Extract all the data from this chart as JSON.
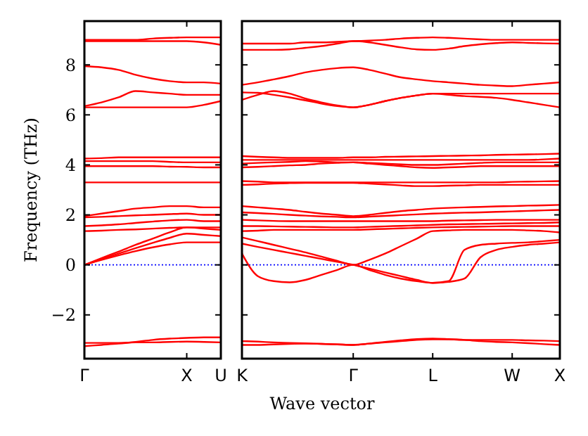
{
  "chart_data": [
    {
      "type": "line",
      "ylabel": "Frequency (THz)",
      "categories": [
        "Γ",
        null,
        null,
        null,
        null,
        null,
        "X",
        null,
        "U"
      ],
      "ylim": [
        -3.75,
        9.75
      ],
      "yticks": [
        {
          "value": -2,
          "label": "−2"
        },
        0,
        2,
        4,
        6,
        8
      ],
      "ref_lines": [
        {
          "axis": "y",
          "value": 0,
          "color": "#0000ff",
          "line_style": "dotted"
        }
      ],
      "series": [
        {
          "color": "#ff0000",
          "values": [
            9.0,
            9.0,
            9.0,
            9.0,
            9.05,
            9.08,
            9.1,
            9.1,
            9.1
          ]
        },
        {
          "color": "#ff0000",
          "values": [
            8.95,
            8.95,
            8.95,
            8.95,
            8.95,
            8.95,
            8.95,
            8.9,
            8.8
          ]
        },
        {
          "color": "#ff0000",
          "values": [
            7.95,
            7.9,
            7.8,
            7.6,
            7.45,
            7.35,
            7.3,
            7.3,
            7.25
          ]
        },
        {
          "color": "#ff0000",
          "values": [
            6.35,
            6.5,
            6.7,
            6.95,
            6.9,
            6.85,
            6.8,
            6.8,
            6.8
          ]
        },
        {
          "color": "#ff0000",
          "values": [
            6.3,
            6.3,
            6.3,
            6.3,
            6.3,
            6.3,
            6.3,
            6.4,
            6.55
          ]
        },
        {
          "color": "#ff0000",
          "values": [
            4.25,
            4.27,
            4.3,
            4.3,
            4.3,
            4.3,
            4.3,
            4.3,
            4.3
          ]
        },
        {
          "color": "#ff0000",
          "values": [
            4.15,
            4.15,
            4.15,
            4.15,
            4.15,
            4.12,
            4.1,
            4.1,
            4.1
          ]
        },
        {
          "color": "#ff0000",
          "values": [
            3.95,
            3.95,
            3.95,
            3.95,
            3.95,
            3.93,
            3.92,
            3.9,
            3.9
          ]
        },
        {
          "color": "#ff0000",
          "values": [
            3.3,
            3.3,
            3.3,
            3.3,
            3.3,
            3.3,
            3.3,
            3.3,
            3.3
          ]
        },
        {
          "color": "#ff0000",
          "values": [
            1.95,
            2.05,
            2.15,
            2.25,
            2.3,
            2.35,
            2.35,
            2.3,
            2.3
          ]
        },
        {
          "color": "#ff0000",
          "values": [
            1.9,
            1.92,
            1.95,
            1.98,
            2.0,
            2.03,
            2.05,
            2.0,
            2.0
          ]
        },
        {
          "color": "#ff0000",
          "values": [
            1.55,
            1.58,
            1.62,
            1.68,
            1.73,
            1.78,
            1.8,
            1.75,
            1.75
          ]
        },
        {
          "color": "#ff0000",
          "values": [
            1.35,
            1.37,
            1.4,
            1.42,
            1.45,
            1.48,
            1.5,
            1.5,
            1.5
          ]
        },
        {
          "color": "#ff0000",
          "values": [
            0,
            0.27,
            0.53,
            0.8,
            1.05,
            1.3,
            1.5,
            1.45,
            1.4
          ]
        },
        {
          "color": "#ff0000",
          "values": [
            0,
            0.23,
            0.45,
            0.67,
            0.88,
            1.08,
            1.25,
            1.2,
            1.15
          ]
        },
        {
          "color": "#ff0000",
          "values": [
            0,
            0.2,
            0.38,
            0.55,
            0.7,
            0.82,
            0.9,
            0.9,
            0.9
          ]
        },
        {
          "color": "#ff0000",
          "values": [
            -3.25,
            -3.2,
            -3.15,
            -3.08,
            -3.0,
            -2.95,
            -2.92,
            -2.9,
            -2.9
          ]
        },
        {
          "color": "#ff0000",
          "values": [
            -3.12,
            -3.12,
            -3.12,
            -3.1,
            -3.1,
            -3.08,
            -3.07,
            -3.08,
            -3.1
          ]
        }
      ]
    },
    {
      "type": "line",
      "xlabel": "Wave vector",
      "categories": [
        "K",
        null,
        null,
        null,
        null,
        null,
        null,
        "Γ",
        null,
        null,
        null,
        null,
        "L",
        null,
        null,
        null,
        null,
        "W",
        null,
        null,
        "X"
      ],
      "ylim": [
        -3.75,
        9.75
      ],
      "yticks": [
        {
          "value": -2,
          "label": null
        },
        {
          "value": 0,
          "label": null
        },
        {
          "value": 2,
          "label": null
        },
        {
          "value": 4,
          "label": null
        },
        {
          "value": 6,
          "label": null
        },
        {
          "value": 8,
          "label": null
        }
      ],
      "tick_labels": "x",
      "ref_lines": [
        {
          "axis": "y",
          "value": 0,
          "color": "#0000ff",
          "line_style": "dotted"
        }
      ],
      "series": [
        {
          "color": "#ff0000",
          "values": [
            8.85,
            8.85,
            8.85,
            8.85,
            8.9,
            8.9,
            8.92,
            8.95,
            8.97,
            9.0,
            9.05,
            9.08,
            9.1,
            9.08,
            9.05,
            9.02,
            9.0,
            9.0,
            9.0,
            9.0,
            9.0
          ]
        },
        {
          "color": "#ff0000",
          "values": [
            8.6,
            8.6,
            8.6,
            8.62,
            8.68,
            8.75,
            8.85,
            8.95,
            8.9,
            8.8,
            8.7,
            8.62,
            8.6,
            8.65,
            8.75,
            8.82,
            8.87,
            8.9,
            8.88,
            8.86,
            8.85
          ]
        },
        {
          "color": "#ff0000",
          "values": [
            7.2,
            7.3,
            7.42,
            7.55,
            7.7,
            7.8,
            7.87,
            7.9,
            7.8,
            7.65,
            7.5,
            7.42,
            7.35,
            7.3,
            7.25,
            7.2,
            7.17,
            7.15,
            7.2,
            7.25,
            7.3
          ]
        },
        {
          "color": "#ff0000",
          "values": [
            6.6,
            6.8,
            6.95,
            6.85,
            6.65,
            6.5,
            6.38,
            6.3,
            6.4,
            6.55,
            6.68,
            6.78,
            6.85,
            6.85,
            6.85,
            6.85,
            6.85,
            6.85,
            6.85,
            6.85,
            6.85
          ]
        },
        {
          "color": "#ff0000",
          "values": [
            6.9,
            6.88,
            6.8,
            6.7,
            6.58,
            6.45,
            6.35,
            6.3,
            6.4,
            6.55,
            6.68,
            6.78,
            6.85,
            6.8,
            6.75,
            6.72,
            6.68,
            6.6,
            6.5,
            6.4,
            6.3
          ]
        },
        {
          "color": "#ff0000",
          "values": [
            4.35,
            4.32,
            4.3,
            4.28,
            4.28,
            4.28,
            4.28,
            4.3,
            4.3,
            4.32,
            4.33,
            4.34,
            4.35,
            4.36,
            4.37,
            4.38,
            4.4,
            4.41,
            4.42,
            4.43,
            4.45
          ]
        },
        {
          "color": "#ff0000",
          "values": [
            4.2,
            4.2,
            4.2,
            4.2,
            4.2,
            4.2,
            4.2,
            4.2,
            4.2,
            4.2,
            4.2,
            4.2,
            4.2,
            4.2,
            4.2,
            4.2,
            4.2,
            4.2,
            4.2,
            4.22,
            4.25
          ]
        },
        {
          "color": "#ff0000",
          "values": [
            4.05,
            4.08,
            4.1,
            4.12,
            4.15,
            4.13,
            4.1,
            4.1,
            4.08,
            4.05,
            4.02,
            4.0,
            4.0,
            4.02,
            4.05,
            4.08,
            4.1,
            4.1,
            4.1,
            4.1,
            4.1
          ]
        },
        {
          "color": "#ff0000",
          "values": [
            3.9,
            3.92,
            3.95,
            3.98,
            4.0,
            4.05,
            4.08,
            4.1,
            4.05,
            4.0,
            3.95,
            3.9,
            3.88,
            3.9,
            3.92,
            3.95,
            3.95,
            3.95,
            3.95,
            3.95,
            3.95
          ]
        },
        {
          "color": "#ff0000",
          "values": [
            3.35,
            3.33,
            3.3,
            3.3,
            3.3,
            3.3,
            3.3,
            3.3,
            3.3,
            3.3,
            3.3,
            3.3,
            3.3,
            3.3,
            3.3,
            3.3,
            3.3,
            3.32,
            3.33,
            3.34,
            3.35
          ]
        },
        {
          "color": "#ff0000",
          "values": [
            3.2,
            3.22,
            3.25,
            3.27,
            3.28,
            3.28,
            3.28,
            3.28,
            3.25,
            3.22,
            3.18,
            3.15,
            3.15,
            3.17,
            3.18,
            3.2,
            3.2,
            3.2,
            3.2,
            3.2,
            3.2
          ]
        },
        {
          "color": "#ff0000",
          "values": [
            2.35,
            2.3,
            2.25,
            2.2,
            2.12,
            2.05,
            2.0,
            1.95,
            2.0,
            2.08,
            2.15,
            2.2,
            2.25,
            2.28,
            2.3,
            2.32,
            2.34,
            2.35,
            2.37,
            2.38,
            2.4
          ]
        },
        {
          "color": "#ff0000",
          "values": [
            2.1,
            2.07,
            2.04,
            2.0,
            1.97,
            1.94,
            1.92,
            1.9,
            1.93,
            1.96,
            1.99,
            2.02,
            2.05,
            2.07,
            2.09,
            2.1,
            2.12,
            2.14,
            2.16,
            2.18,
            2.2
          ]
        },
        {
          "color": "#ff0000",
          "values": [
            1.8,
            1.78,
            1.76,
            1.75,
            1.75,
            1.75,
            1.75,
            1.75,
            1.75,
            1.75,
            1.75,
            1.75,
            1.75,
            1.77,
            1.78,
            1.79,
            1.8,
            1.8,
            1.8,
            1.8,
            1.8
          ]
        },
        {
          "color": "#ff0000",
          "values": [
            1.55,
            1.55,
            1.54,
            1.53,
            1.52,
            1.51,
            1.5,
            1.5,
            1.52,
            1.54,
            1.56,
            1.58,
            1.6,
            1.62,
            1.63,
            1.64,
            1.65,
            1.66,
            1.67,
            1.68,
            1.7
          ]
        },
        {
          "color": "#ff0000",
          "values": [
            1.35,
            1.37,
            1.4,
            1.4,
            1.4,
            1.4,
            1.4,
            1.4,
            1.42,
            1.44,
            1.46,
            1.48,
            1.5,
            1.51,
            1.52,
            1.53,
            1.54,
            1.55,
            1.55,
            1.55,
            1.55
          ]
        },
        {
          "color": "#ff0000",
          "values": [
            1.1,
            0.95,
            0.8,
            0.65,
            0.5,
            0.33,
            0.16,
            0,
            0.2,
            0.45,
            0.75,
            1.05,
            1.35,
            1.38,
            1.4,
            1.4,
            1.4,
            1.4,
            1.38,
            1.35,
            1.3
          ]
        },
        {
          "color": "#ff0000",
          "values": [
            -3.05,
            -3.07,
            -3.1,
            -3.12,
            -3.14,
            -3.16,
            -3.18,
            -3.2,
            -3.15,
            -3.1,
            -3.05,
            -3.0,
            -2.98,
            -2.98,
            -3.0,
            -3.0,
            -3.0,
            -3.0,
            -3.02,
            -3.03,
            -3.05
          ]
        },
        {
          "color": "#ff0000",
          "values": [
            -3.2,
            -3.2,
            -3.18,
            -3.16,
            -3.15,
            -3.16,
            -3.18,
            -3.2,
            -3.15,
            -3.08,
            -3.02,
            -2.97,
            -2.95,
            -2.97,
            -3.0,
            -3.05,
            -3.08,
            -3.1,
            -3.13,
            -3.17,
            -3.2
          ]
        },
        {
          "color": "#ff0000",
          "values": [
            0.45,
            -0.45,
            -0.65,
            -0.7,
            -0.6,
            -0.4,
            -0.2,
            0,
            -0.2,
            -0.4,
            -0.55,
            -0.65,
            -0.72,
            -0.65,
            0.6,
            0.8,
            0.85,
            0.88,
            0.9,
            0.95,
            1.0
          ]
        },
        {
          "color": "#ff0000",
          "values": [
            0.85,
            0.72,
            0.6,
            0.48,
            0.36,
            0.24,
            0.12,
            0,
            -0.15,
            -0.3,
            -0.45,
            -0.6,
            -0.72,
            -0.68,
            -0.55,
            0.3,
            0.6,
            0.72,
            0.8,
            0.85,
            0.9
          ]
        }
      ]
    }
  ]
}
